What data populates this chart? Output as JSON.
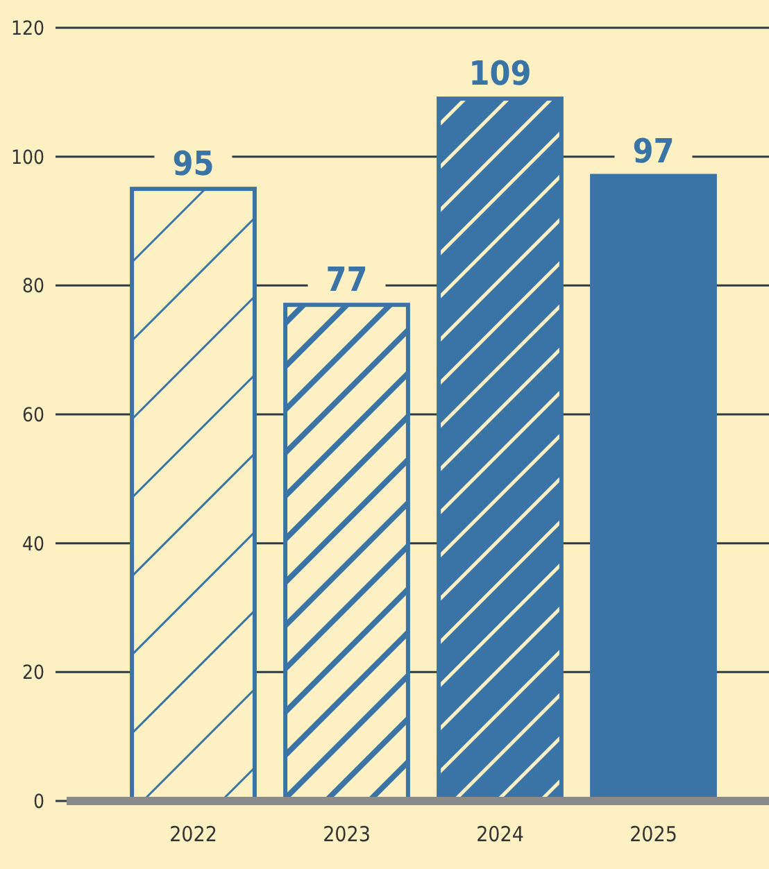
{
  "chart_data": {
    "type": "bar",
    "categories": [
      "2022",
      "2023",
      "2024",
      "2025"
    ],
    "values": [
      95,
      77,
      109,
      97
    ],
    "color": "#3a74a6",
    "ylim": [
      0,
      120
    ],
    "yticks": [
      0,
      20,
      40,
      60,
      80,
      100,
      120
    ],
    "grid": "y",
    "data_labels": true
  }
}
